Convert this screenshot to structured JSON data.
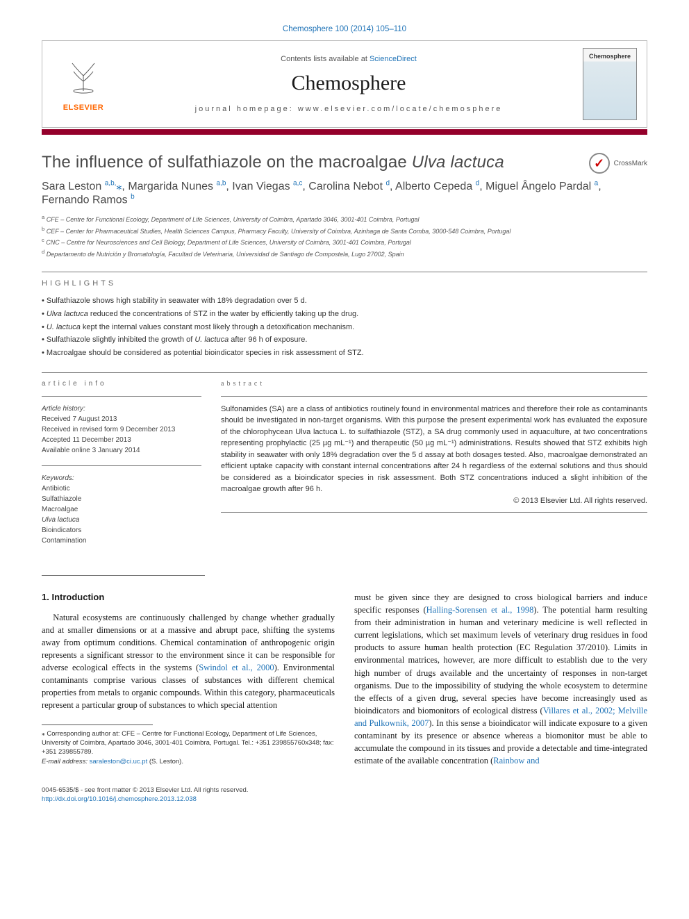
{
  "journal_ref": "Chemosphere 100 (2014) 105–110",
  "masthead": {
    "contents_prefix": "Contents lists available at ",
    "contents_link": "ScienceDirect",
    "journal_name": "Chemosphere",
    "homepage": "journal homepage: www.elsevier.com/locate/chemosphere",
    "elsevier_label": "ELSEVIER",
    "cover_label": "Chemosphere"
  },
  "crossmark_label": "CrossMark",
  "title_pre": "The influence of sulfathiazole on the macroalgae ",
  "title_em": "Ulva lactuca",
  "authors_html": "Sara Leston <sup>a,b,</sup><span class='star'>⁎</span>, Margarida Nunes <sup>a,b</sup>, Ivan Viegas <sup>a,c</sup>, Carolina Nebot <sup>d</sup>, Alberto Cepeda <sup>d</sup>, Miguel Ângelo Pardal <sup>a</sup>, Fernando Ramos <sup>b</sup>",
  "affiliations": [
    "a CFE – Centre for Functional Ecology, Department of Life Sciences, University of Coimbra, Apartado 3046, 3001-401 Coimbra, Portugal",
    "b CEF – Center for Pharmaceutical Studies, Health Sciences Campus, Pharmacy Faculty, University of Coimbra, Azinhaga de Santa Comba, 3000-548 Coimbra, Portugal",
    "c CNC – Centre for Neurosciences and Cell Biology, Department of Life Sciences, University of Coimbra, 3001-401 Coimbra, Portugal",
    "d Departamento de Nutrición y Bromatología, Facultad de Veterinaria, Universidad de Santiago de Compostela, Lugo 27002, Spain"
  ],
  "highlights_label": "highlights",
  "highlights": [
    "Sulfathiazole shows high stability in seawater with 18% degradation over 5 d.",
    "<em>Ulva lactuca</em> reduced the concentrations of STZ in the water by efficiently taking up the drug.",
    "<em>U. lactuca</em> kept the internal values constant most likely through a detoxification mechanism.",
    "Sulfathiazole slightly inhibited the growth of <em>U. lactuca</em> after 96 h of exposure.",
    "Macroalgae should be considered as potential bioindicator species in risk assessment of STZ."
  ],
  "article_info_label": "article info",
  "abstract_label": "abstract",
  "history_label": "Article history:",
  "history": [
    "Received 7 August 2013",
    "Received in revised form 9 December 2013",
    "Accepted 11 December 2013",
    "Available online 3 January 2014"
  ],
  "keywords_label": "Keywords:",
  "keywords": [
    "Antibiotic",
    "Sulfathiazole",
    "Macroalgae",
    "Ulva lactuca",
    "Bioindicators",
    "Contamination"
  ],
  "abstract_text": "Sulfonamides (SA) are a class of antibiotics routinely found in environmental matrices and therefore their role as contaminants should be investigated in non-target organisms. With this purpose the present experimental work has evaluated the exposure of the chlorophycean Ulva lactuca L. to sulfathiazole (STZ), a SA drug commonly used in aquaculture, at two concentrations representing prophylactic (25 µg mL⁻¹) and therapeutic (50 µg mL⁻¹) administrations. Results showed that STZ exhibits high stability in seawater with only 18% degradation over the 5 d assay at both dosages tested. Also, macroalgae demonstrated an efficient uptake capacity with constant internal concentrations after 24 h regardless of the external solutions and thus should be considered as a bioindicator species in risk assessment. Both STZ concentrations induced a slight inhibition of the macroalgae growth after 96 h.",
  "copyright": "© 2013 Elsevier Ltd. All rights reserved.",
  "intro_heading": "1. Introduction",
  "intro_p1_a": "Natural ecosystems are continuously challenged by change whether gradually and at smaller dimensions or at a massive and abrupt pace, shifting the systems away from optimum conditions. Chemical contamination of anthropogenic origin represents a significant stressor to the environment since it can be responsible for adverse ecological effects in the systems (",
  "intro_p1_link1": "Swindol et al., 2000",
  "intro_p1_b": "). Environmental contaminants comprise various classes of substances with different chemical properties from metals to organic compounds. Within this category, pharmaceuticals represent a particular group of substances to which special attention",
  "intro_p2_a": "must be given since they are designed to cross biological barriers and induce specific responses (",
  "intro_p2_link1": "Halling-Sorensen et al., 1998",
  "intro_p2_b": "). The potential harm resulting from their administration in human and veterinary medicine is well reflected in current legislations, which set maximum levels of veterinary drug residues in food products to assure human health protection (EC Regulation 37/2010). Limits in environmental matrices, however, are more difficult to establish due to the very high number of drugs available and the uncertainty of responses in non-target organisms. Due to the impossibility of studying the whole ecosystem to determine the effects of a given drug, several species have become increasingly used as bioindicators and biomonitors of ecological distress (",
  "intro_p2_link2": "Villares et al., 2002; Melville and Pulkownik, 2007",
  "intro_p2_c": "). In this sense a bioindicator will indicate exposure to a given contaminant by its presence or absence whereas a biomonitor must be able to accumulate the compound in its tissues and provide a detectable and time-integrated estimate of the available concentration (",
  "intro_p2_link3": "Rainbow and",
  "corr_author": "⁎ Corresponding author at: CFE – Centre for Functional Ecology, Department of Life Sciences, University of Coimbra, Apartado 3046, 3001-401 Coimbra, Portugal. Tel.: +351 239855760x348; fax: +351 239855789.",
  "email_label": "E-mail address: ",
  "email": "saraleston@ci.uc.pt",
  "email_paren": " (S. Leston).",
  "footer_line1": "0045-6535/$ - see front matter © 2013 Elsevier Ltd. All rights reserved.",
  "footer_doi": "http://dx.doi.org/10.1016/j.chemosphere.2013.12.038",
  "colors": {
    "link": "#1f73b7",
    "bar": "#94002b",
    "elsevier_orange": "#ff6600"
  }
}
